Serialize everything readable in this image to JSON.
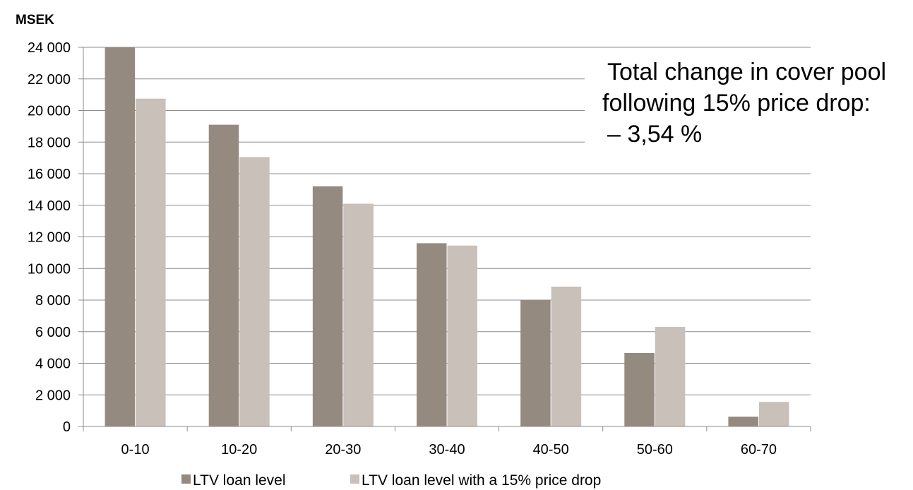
{
  "chart_data": {
    "type": "bar",
    "title": "",
    "xlabel": "",
    "ylabel": "MSEK",
    "ylim": [
      0,
      24000
    ],
    "ytick_step": 2000,
    "ytick_labels": [
      "0",
      "2 000",
      "4 000",
      "6 000",
      "8 000",
      "10 000",
      "12 000",
      "14 000",
      "16 000",
      "18 000",
      "20 000",
      "22 000",
      "24 000"
    ],
    "categories": [
      "0-10",
      "10-20",
      "20-30",
      "30-40",
      "40-50",
      "50-60",
      "60-70"
    ],
    "series": [
      {
        "name": "LTV loan level",
        "color": "#958a80",
        "values": [
          24000,
          19100,
          15200,
          11600,
          8000,
          4650,
          620
        ]
      },
      {
        "name": "LTV loan level with a 15% price drop",
        "color": "#c8c0b9",
        "values": [
          20750,
          17050,
          14100,
          11450,
          8850,
          6300,
          1550
        ]
      }
    ],
    "grid": true,
    "legend": "bottom-center",
    "annotation": {
      "lines": [
        "Total change in cover pool",
        "following 15% price drop:",
        "– 3,54 %"
      ]
    }
  }
}
